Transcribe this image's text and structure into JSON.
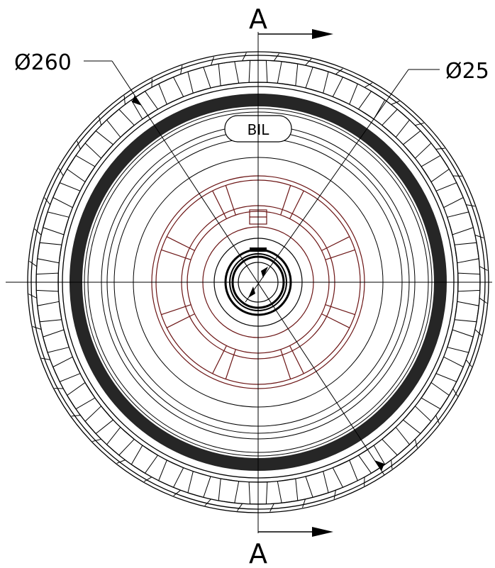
{
  "section": {
    "label_top": "A",
    "label_bottom": "A"
  },
  "dimensions": {
    "outer_diameter": "Ø260",
    "bore_diameter": "Ø25"
  },
  "hub": {
    "badge": "BIL"
  },
  "colors": {
    "line": "#000000",
    "hub_lines": "#6b1414",
    "tread_band": "#262626",
    "background": "#ffffff"
  }
}
